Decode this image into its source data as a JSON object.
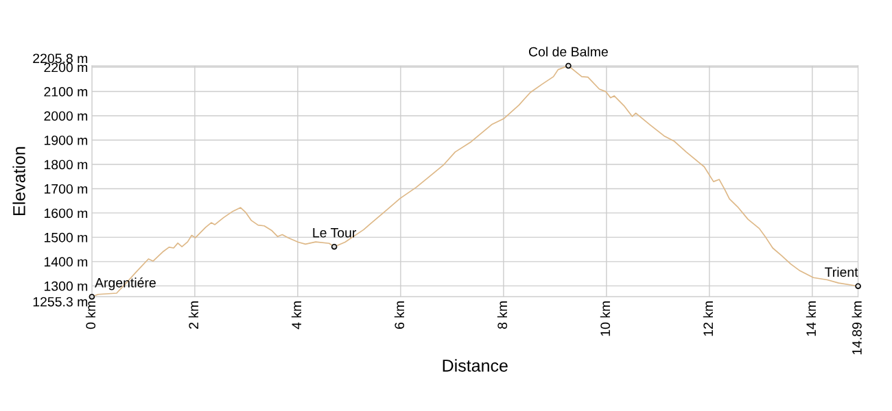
{
  "chart_data": {
    "type": "line",
    "xlabel": "Distance",
    "ylabel": "Elevation",
    "x": [
      0,
      0.12,
      0.48,
      0.66,
      0.86,
      1.1,
      1.19,
      1.39,
      1.5,
      1.59,
      1.67,
      1.75,
      1.86,
      1.94,
      2.01,
      2.21,
      2.32,
      2.39,
      2.56,
      2.74,
      2.89,
      2.99,
      3.1,
      3.23,
      3.35,
      3.5,
      3.61,
      3.7,
      3.81,
      4.01,
      4.15,
      4.35,
      4.61,
      4.71,
      4.92,
      5.28,
      5.41,
      5.72,
      5.99,
      6.3,
      6.52,
      6.84,
      7.06,
      7.37,
      7.77,
      8.01,
      8.3,
      8.52,
      8.75,
      8.97,
      9.06,
      9.26,
      9.52,
      9.64,
      9.86,
      9.99,
      10.08,
      10.15,
      10.35,
      10.5,
      10.57,
      10.84,
      11.12,
      11.32,
      11.55,
      11.9,
      12.08,
      12.19,
      12.3,
      12.39,
      12.55,
      12.75,
      12.97,
      13.1,
      13.23,
      13.41,
      13.58,
      13.76,
      14.02,
      14.29,
      14.51,
      14.89
    ],
    "series": [
      {
        "color": "#deb887",
        "values": [
          1255.3,
          1265,
          1270,
          1310,
          1357,
          1411,
          1402,
          1442,
          1459,
          1456,
          1476,
          1461,
          1481,
          1508,
          1498,
          1541,
          1560,
          1552,
          1581,
          1607,
          1622,
          1602,
          1569,
          1550,
          1547,
          1527,
          1503,
          1511,
          1498,
          1480,
          1472,
          1481,
          1475,
          1461,
          1480,
          1531,
          1555,
          1611,
          1660,
          1705,
          1743,
          1799,
          1851,
          1893,
          1964,
          1989,
          2044,
          2096,
          2130,
          2161,
          2190,
          2205.8,
          2161,
          2159,
          2110,
          2099,
          2074,
          2082,
          2039,
          1997,
          2011,
          1964,
          1917,
          1895,
          1851,
          1790,
          1729,
          1738,
          1696,
          1658,
          1625,
          1574,
          1536,
          1498,
          1456,
          1423,
          1390,
          1362,
          1334,
          1325,
          1312,
          1299
        ]
      }
    ],
    "xlim": [
      0,
      14.89
    ],
    "xticks": [
      {
        "value": 0,
        "label": "0 km"
      },
      {
        "value": 2,
        "label": "2 km"
      },
      {
        "value": 4,
        "label": "4 km"
      },
      {
        "value": 6,
        "label": "6 km"
      },
      {
        "value": 8,
        "label": "8 km"
      },
      {
        "value": 10,
        "label": "10 km"
      },
      {
        "value": 12,
        "label": "12 km"
      },
      {
        "value": 14,
        "label": "14 km"
      },
      {
        "value": 14.89,
        "label": "14.89 km"
      }
    ],
    "ylim": [
      1255.3,
      2205.8
    ],
    "yticks": [
      {
        "value": 1255.3,
        "label": "1255.3 m"
      },
      {
        "value": 1300,
        "label": "1300 m"
      },
      {
        "value": 1400,
        "label": "1400 m"
      },
      {
        "value": 1500,
        "label": "1500 m"
      },
      {
        "value": 1600,
        "label": "1600 m"
      },
      {
        "value": 1700,
        "label": "1700 m"
      },
      {
        "value": 1800,
        "label": "1800 m"
      },
      {
        "value": 1900,
        "label": "1900 m"
      },
      {
        "value": 2000,
        "label": "2000 m"
      },
      {
        "value": 2100,
        "label": "2100 m"
      },
      {
        "value": 2200,
        "label": "2200 m"
      },
      {
        "value": 2205.8,
        "label": "2205.8 m"
      }
    ],
    "grid": true,
    "annotations": [
      {
        "text": "Argentiére",
        "x": 0,
        "y": 1255.3
      },
      {
        "text": "Le Tour",
        "x": 4.71,
        "y": 1461
      },
      {
        "text": "Col de Balme",
        "x": 9.26,
        "y": 2205.8
      },
      {
        "text": "Trient",
        "x": 14.89,
        "y": 1299
      }
    ]
  }
}
